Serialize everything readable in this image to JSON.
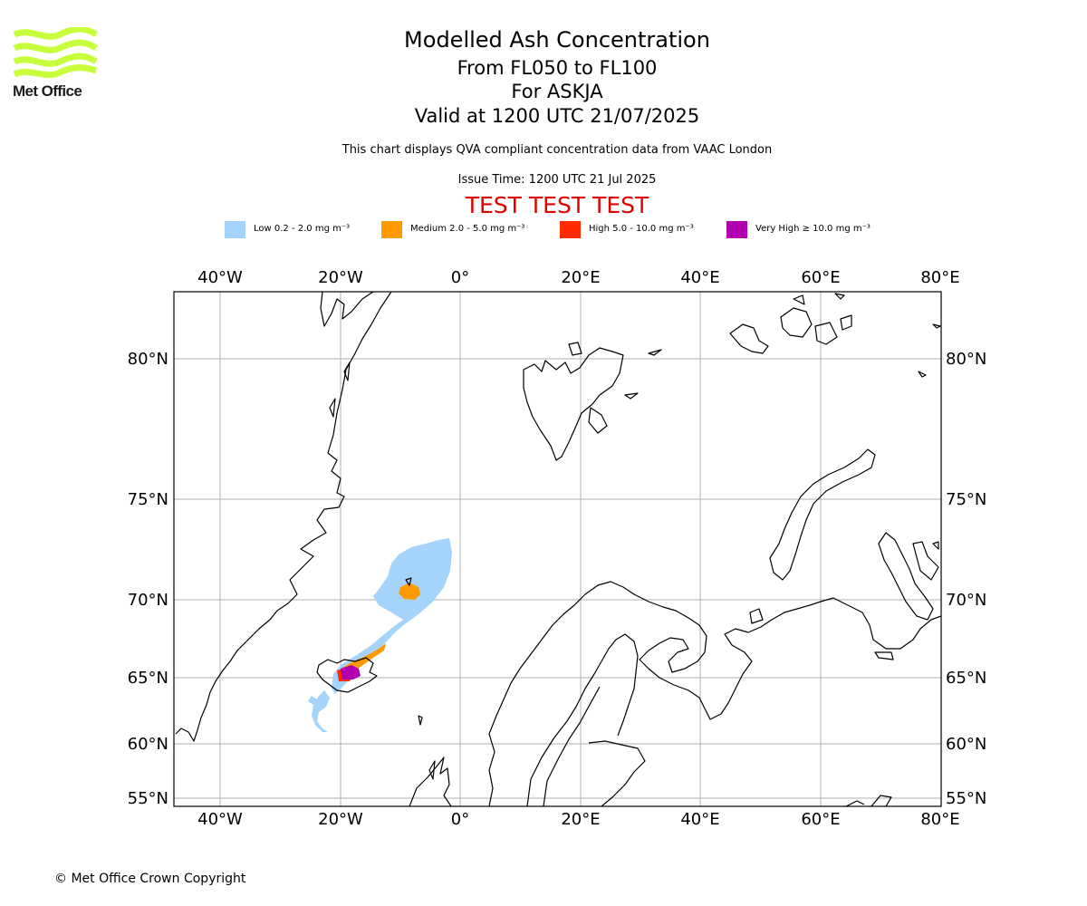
{
  "header": {
    "brand": "Met Office",
    "title": "Modelled Ash Concentration",
    "line2": "From FL050 to FL100",
    "line3": "For ASKJA",
    "line4": "Valid at 1200 UTC 21/07/2025",
    "description": "This chart displays QVA compliant concentration data from VAAC London",
    "issue_time": "Issue Time: 1200 UTC 21 Jul 2025",
    "test_banner": "TEST TEST TEST"
  },
  "legend": [
    {
      "label": "Low 0.2 - 2.0 mg m⁻³",
      "color": "#a4d3fc"
    },
    {
      "label": "Medium 2.0 - 5.0 mg m⁻³",
      "color": "#ff9900"
    },
    {
      "label": "High 5.0 - 10.0 mg m⁻³",
      "color": "#ff2a00"
    },
    {
      "label": "Very High ≥ 10.0 mg m⁻³",
      "color": "#b000b0"
    }
  ],
  "map": {
    "lon_ticks": [
      "40°W",
      "20°W",
      "0°",
      "20°E",
      "40°E",
      "60°E",
      "80°E"
    ],
    "lat_ticks": [
      "80°N",
      "75°N",
      "70°N",
      "65°N",
      "60°N",
      "55°N"
    ],
    "grid": true,
    "colors": {
      "grid": "#b0b0b0",
      "coast": "#000000",
      "logo": "#c8ff3c"
    }
  },
  "footer": {
    "copyright": "© Met Office Crown Copyright"
  }
}
